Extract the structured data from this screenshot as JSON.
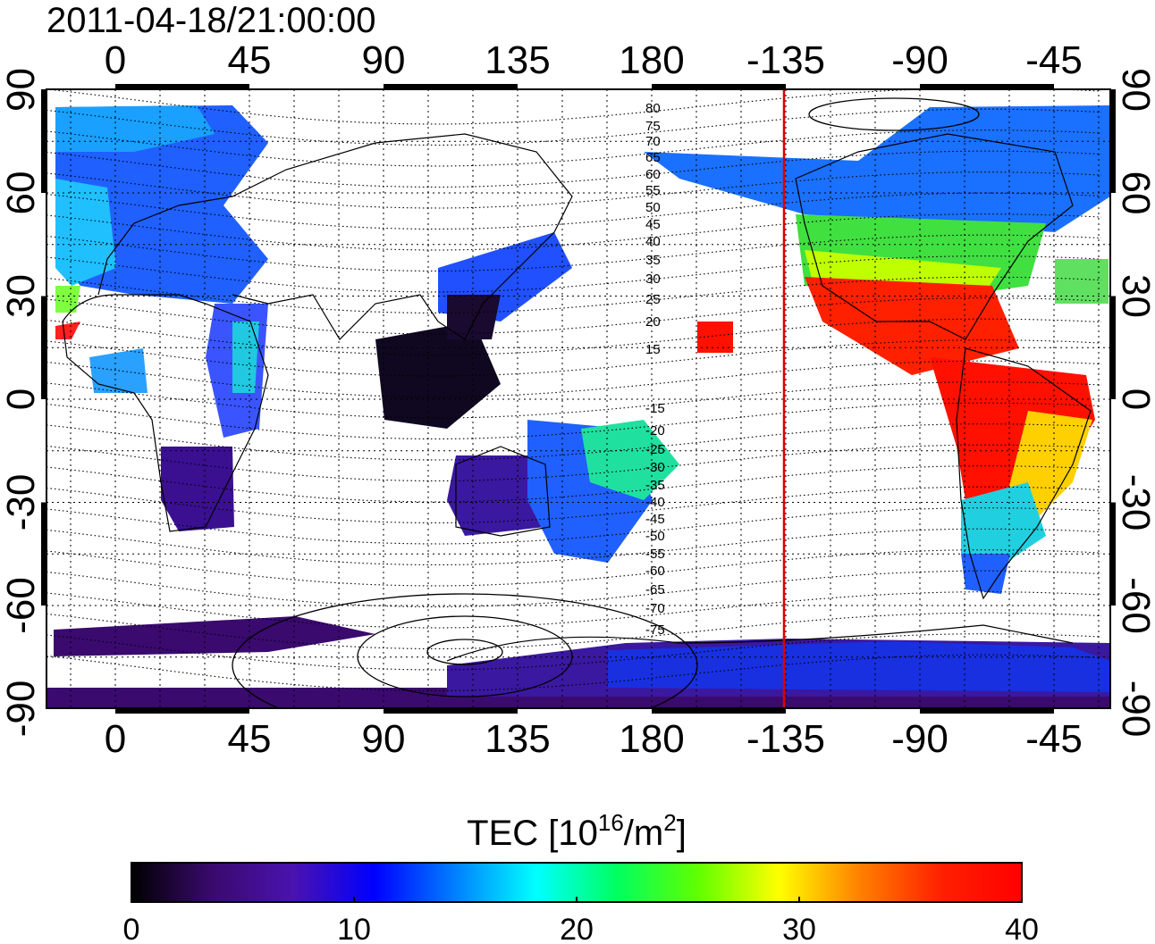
{
  "title": "2011-04-18/21:00:00",
  "map": {
    "top_lon_labels": [
      "0",
      "45",
      "90",
      "135",
      "180",
      "-135",
      "-90",
      "-45"
    ],
    "bottom_lon_labels": [
      "0",
      "45",
      "90",
      "135",
      "180",
      "-135",
      "-90",
      "-45"
    ],
    "left_lat_labels": [
      "90",
      "60",
      "30",
      "0",
      "-30",
      "-60",
      "-90"
    ],
    "right_lat_labels": [
      "90",
      "60",
      "30",
      "0",
      "-30",
      "-60",
      "-90"
    ],
    "geomagnetic_contour_labels": [
      "80",
      "75",
      "70",
      "65",
      "60",
      "55",
      "50",
      "45",
      "40",
      "35",
      "30",
      "25",
      "20",
      "15",
      "-15",
      "-20",
      "-25",
      "-30",
      "-35",
      "-40",
      "-45",
      "-50",
      "-55",
      "-60",
      "-65",
      "-70",
      "-75"
    ],
    "terminator_lon": -135,
    "colors": {
      "terminator": "#e00000",
      "frame": "#000000"
    }
  },
  "colorbar": {
    "title_main": "TEC  [10",
    "title_sup1": "16",
    "title_mid": "/m",
    "title_sup2": "2",
    "title_end": "]",
    "min": 0,
    "max": 40,
    "tick_labels": [
      "0",
      "10",
      "20",
      "30",
      "40"
    ],
    "stops": [
      "#000000",
      "#3a0a6e",
      "#4a12b0",
      "#0000ff",
      "#0080ff",
      "#00ffff",
      "#00ff60",
      "#60ff00",
      "#ffff00",
      "#ff8000",
      "#ff2000",
      "#ff0000"
    ]
  }
}
